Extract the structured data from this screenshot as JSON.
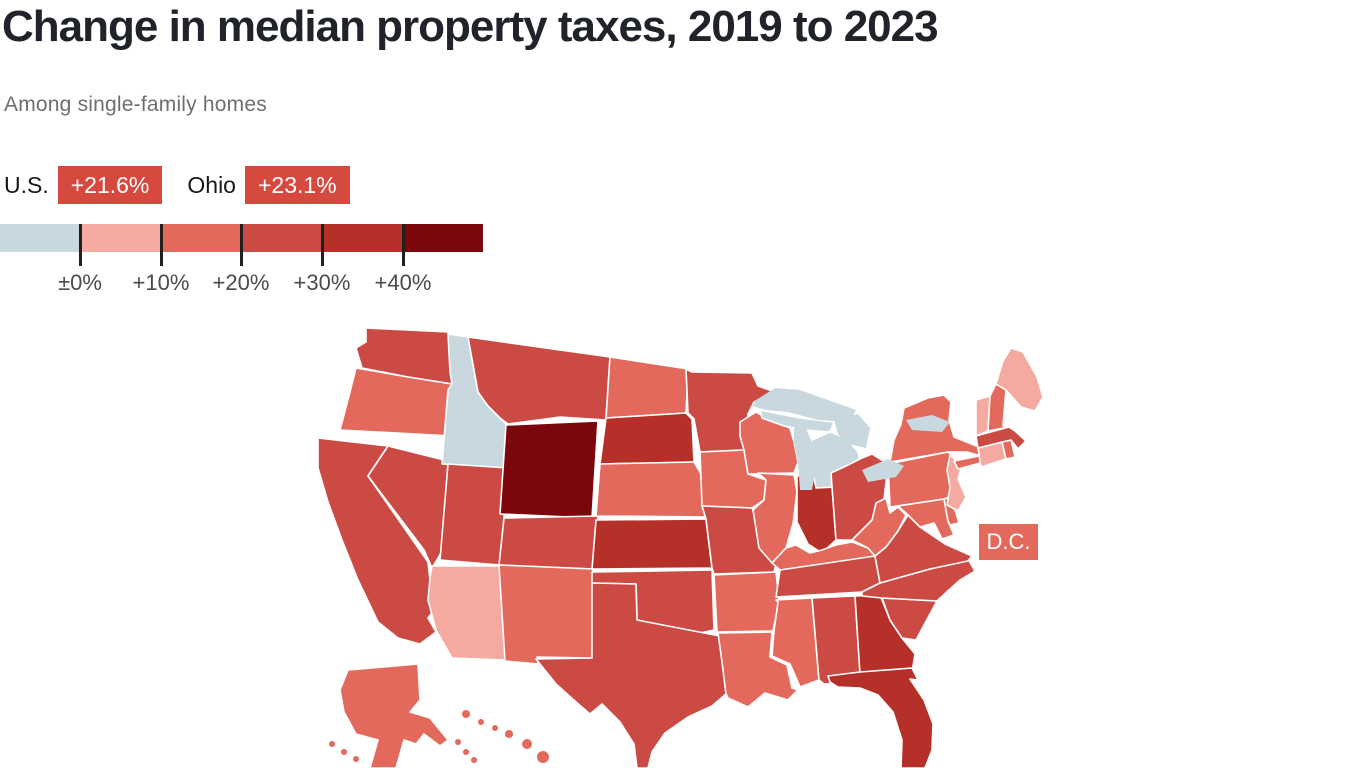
{
  "header": {
    "title": "Change in median property taxes, 2019 to 2023",
    "subtitle": "Among single-family homes"
  },
  "stats": {
    "badge_color": "#d6493f",
    "items": [
      {
        "label": "U.S.",
        "value": "+21.6%"
      },
      {
        "label": "Ohio",
        "value": "+23.1%"
      }
    ]
  },
  "legend": {
    "ticks": [
      "±0%",
      "+10%",
      "+20%",
      "+30%",
      "+40%"
    ]
  },
  "map": {
    "water_color": "#c9d8df",
    "border_color": "#ffffff",
    "dc_label": "D.C."
  },
  "chart_data": {
    "type": "choropleth",
    "title": "Change in median property taxes, 2019 to 2023",
    "subtitle": "Among single-family homes",
    "region": "United States, by state",
    "unit": "percent change in median property taxes, 2019 to 2023",
    "highlights": [
      {
        "label": "U.S.",
        "value": "+21.6%"
      },
      {
        "label": "Ohio",
        "value": "+23.1%"
      }
    ],
    "scale_ticks": [
      "±0%",
      "+10%",
      "+20%",
      "+30%",
      "+40%"
    ],
    "bands": [
      {
        "id": "neg",
        "label": "±0% or below",
        "color": "#c9d8df"
      },
      {
        "id": "0-10",
        "label": "0% to +10%",
        "color": "#f4a9a1"
      },
      {
        "id": "10-20",
        "label": "+10% to +20%",
        "color": "#e4695d"
      },
      {
        "id": "20-30",
        "label": "+20% to +30%",
        "color": "#cb4a43"
      },
      {
        "id": "30-40",
        "label": "+30% to +40%",
        "color": "#b53029"
      },
      {
        "id": "40+",
        "label": "+40% or more",
        "color": "#7b060b"
      }
    ],
    "states": [
      {
        "abbr": "WA",
        "name": "Washington",
        "band": "20-30"
      },
      {
        "abbr": "OR",
        "name": "Oregon",
        "band": "10-20"
      },
      {
        "abbr": "CA",
        "name": "California",
        "band": "20-30"
      },
      {
        "abbr": "NV",
        "name": "Nevada",
        "band": "20-30"
      },
      {
        "abbr": "ID",
        "name": "Idaho",
        "band": "neg"
      },
      {
        "abbr": "UT",
        "name": "Utah",
        "band": "20-30"
      },
      {
        "abbr": "AZ",
        "name": "Arizona",
        "band": "0-10"
      },
      {
        "abbr": "MT",
        "name": "Montana",
        "band": "20-30"
      },
      {
        "abbr": "WY",
        "name": "Wyoming",
        "band": "40+"
      },
      {
        "abbr": "CO",
        "name": "Colorado",
        "band": "20-30"
      },
      {
        "abbr": "NM",
        "name": "New Mexico",
        "band": "10-20"
      },
      {
        "abbr": "ND",
        "name": "North Dakota",
        "band": "10-20"
      },
      {
        "abbr": "SD",
        "name": "South Dakota",
        "band": "30-40"
      },
      {
        "abbr": "NE",
        "name": "Nebraska",
        "band": "10-20"
      },
      {
        "abbr": "KS",
        "name": "Kansas",
        "band": "30-40"
      },
      {
        "abbr": "OK",
        "name": "Oklahoma",
        "band": "20-30"
      },
      {
        "abbr": "TX",
        "name": "Texas",
        "band": "20-30"
      },
      {
        "abbr": "MN",
        "name": "Minnesota",
        "band": "20-30"
      },
      {
        "abbr": "IA",
        "name": "Iowa",
        "band": "10-20"
      },
      {
        "abbr": "MO",
        "name": "Missouri",
        "band": "20-30"
      },
      {
        "abbr": "AR",
        "name": "Arkansas",
        "band": "10-20"
      },
      {
        "abbr": "LA",
        "name": "Louisiana",
        "band": "10-20"
      },
      {
        "abbr": "WI",
        "name": "Wisconsin",
        "band": "10-20"
      },
      {
        "abbr": "IL",
        "name": "Illinois",
        "band": "10-20"
      },
      {
        "abbr": "IN",
        "name": "Indiana",
        "band": "30-40"
      },
      {
        "abbr": "MI",
        "name": "Michigan",
        "band": "neg"
      },
      {
        "abbr": "OH",
        "name": "Ohio",
        "band": "20-30"
      },
      {
        "abbr": "KY",
        "name": "Kentucky",
        "band": "10-20"
      },
      {
        "abbr": "TN",
        "name": "Tennessee",
        "band": "20-30"
      },
      {
        "abbr": "MS",
        "name": "Mississippi",
        "band": "10-20"
      },
      {
        "abbr": "AL",
        "name": "Alabama",
        "band": "20-30"
      },
      {
        "abbr": "GA",
        "name": "Georgia",
        "band": "30-40"
      },
      {
        "abbr": "FL",
        "name": "Florida",
        "band": "30-40"
      },
      {
        "abbr": "SC",
        "name": "South Carolina",
        "band": "20-30"
      },
      {
        "abbr": "NC",
        "name": "North Carolina",
        "band": "20-30"
      },
      {
        "abbr": "VA",
        "name": "Virginia",
        "band": "20-30"
      },
      {
        "abbr": "WV",
        "name": "West Virginia",
        "band": "10-20"
      },
      {
        "abbr": "MD",
        "name": "Maryland",
        "band": "10-20"
      },
      {
        "abbr": "DE",
        "name": "Delaware",
        "band": "10-20"
      },
      {
        "abbr": "PA",
        "name": "Pennsylvania",
        "band": "10-20"
      },
      {
        "abbr": "NJ",
        "name": "New Jersey",
        "band": "0-10"
      },
      {
        "abbr": "NY",
        "name": "New York",
        "band": "10-20"
      },
      {
        "abbr": "CT",
        "name": "Connecticut",
        "band": "0-10"
      },
      {
        "abbr": "RI",
        "name": "Rhode Island",
        "band": "10-20"
      },
      {
        "abbr": "MA",
        "name": "Massachusetts",
        "band": "20-30"
      },
      {
        "abbr": "VT",
        "name": "Vermont",
        "band": "0-10"
      },
      {
        "abbr": "NH",
        "name": "New Hampshire",
        "band": "10-20"
      },
      {
        "abbr": "ME",
        "name": "Maine",
        "band": "0-10"
      },
      {
        "abbr": "AK",
        "name": "Alaska",
        "band": "10-20"
      },
      {
        "abbr": "HI",
        "name": "Hawaii",
        "band": "10-20"
      },
      {
        "abbr": "DC",
        "name": "District of Columbia",
        "band": "10-20"
      }
    ]
  }
}
